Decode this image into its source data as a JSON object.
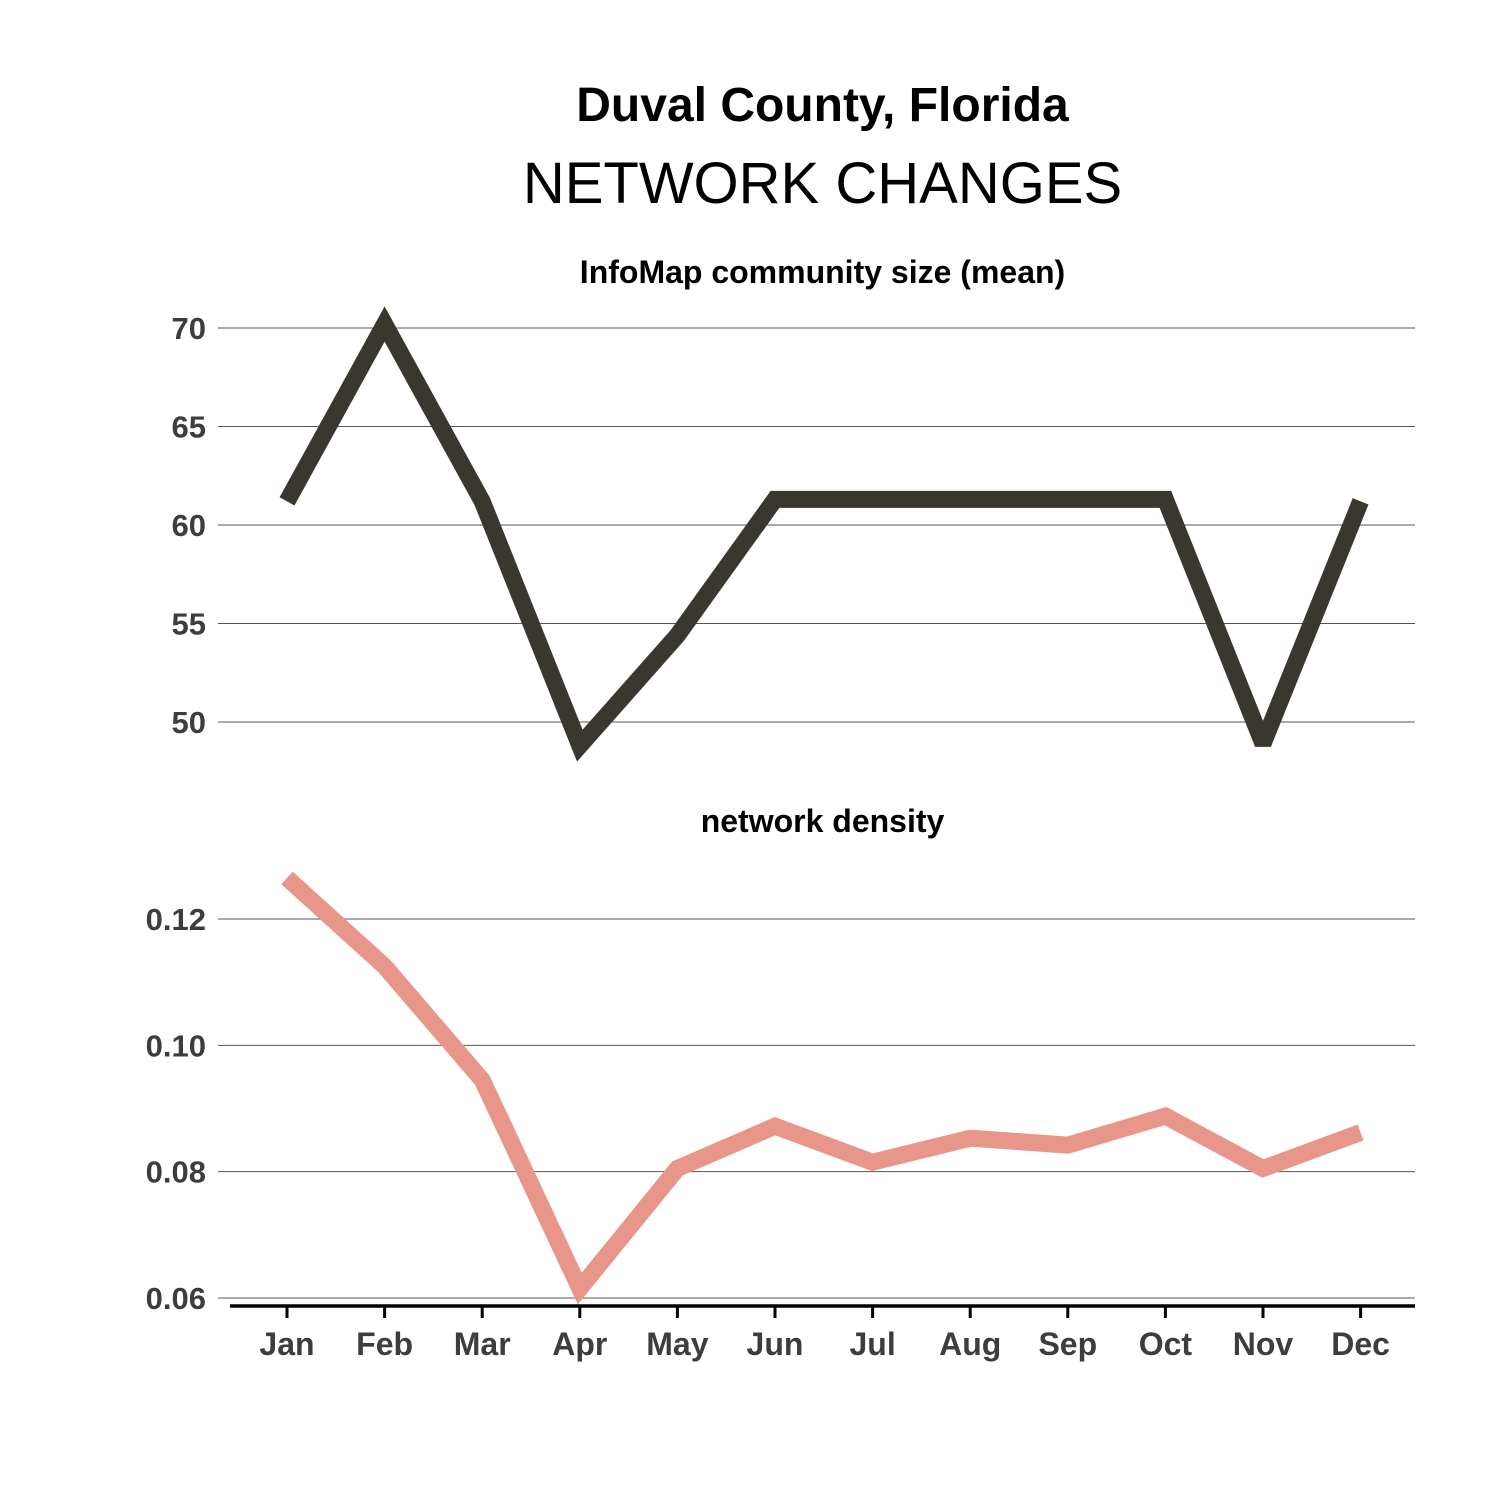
{
  "header": {
    "title": "Duval County, Florida",
    "subtitle": "NETWORK CHANGES"
  },
  "colors": {
    "series1": "#3a3630",
    "series2": "#e8958a",
    "axis": "#000000",
    "grid": "#555555",
    "tick_text": "#3d3d3d"
  },
  "chart_data": [
    {
      "type": "line",
      "title": "InfoMap community size (mean)",
      "x": [
        "Jan",
        "Feb",
        "Mar",
        "Apr",
        "May",
        "Jun",
        "Jul",
        "Aug",
        "Sep",
        "Oct",
        "Nov",
        "Dec"
      ],
      "series": [
        {
          "values": [
            61.2,
            70.2,
            61.2,
            48.8,
            54.4,
            61.3,
            61.3,
            61.3,
            61.3,
            61.3,
            48.9,
            61.2
          ]
        }
      ],
      "yticks": [
        50,
        55,
        60,
        65,
        70
      ],
      "ylim": [
        48.4,
        71.5
      ],
      "grid": true
    },
    {
      "type": "line",
      "title": "network density",
      "x": [
        "Jan",
        "Feb",
        "Mar",
        "Apr",
        "May",
        "Jun",
        "Jul",
        "Aug",
        "Sep",
        "Oct",
        "Nov",
        "Dec"
      ],
      "series": [
        {
          "values": [
            0.1265,
            0.1125,
            0.0945,
            0.0615,
            0.0805,
            0.0872,
            0.0815,
            0.0853,
            0.0842,
            0.0888,
            0.0805,
            0.0862
          ]
        }
      ],
      "yticks": [
        "0.06",
        "0.08",
        "0.10",
        "0.12"
      ],
      "ylim": [
        0.0585,
        0.1325
      ],
      "grid": true
    }
  ]
}
